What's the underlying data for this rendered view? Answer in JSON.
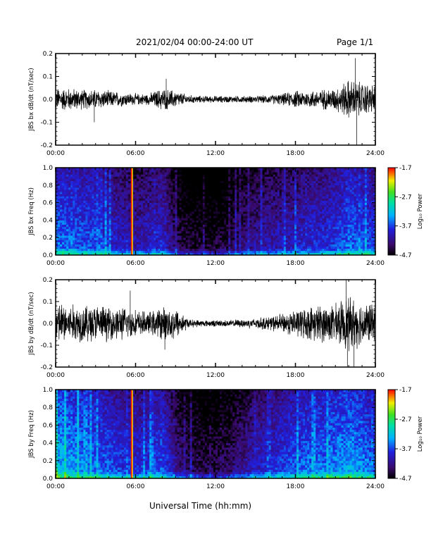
{
  "header": {
    "title": "2021/02/04  00:00-24:00 UT",
    "page": "Page 1/1"
  },
  "x_axis_label": "Universal Time (hh:mm)",
  "chart_data": [
    {
      "type": "line",
      "ylabel": "JBS bx dB/dt (nT/sec)",
      "ylim": [
        -0.2,
        0.2
      ],
      "yticks": [
        "0.2",
        "0.1",
        "0.0",
        "-0.1",
        "-0.2"
      ],
      "xticks": [
        "00:00",
        "06:00",
        "12:00",
        "18:00",
        "24:00"
      ],
      "xlim_hours": [
        0,
        24
      ],
      "envelope": {
        "hours": [
          0,
          1,
          2,
          3,
          4,
          5,
          6,
          7,
          8,
          9,
          10,
          11,
          12,
          13,
          14,
          15,
          16,
          17,
          18,
          19,
          20,
          21,
          22,
          23,
          24
        ],
        "amplitude": [
          0.04,
          0.04,
          0.035,
          0.035,
          0.03,
          0.025,
          0.02,
          0.02,
          0.04,
          0.03,
          0.015,
          0.012,
          0.012,
          0.012,
          0.012,
          0.012,
          0.015,
          0.02,
          0.03,
          0.03,
          0.035,
          0.04,
          0.07,
          0.06,
          0.05
        ],
        "peaks": [
          {
            "hour": 2.9,
            "value": -0.1
          },
          {
            "hour": 8.3,
            "value": 0.09
          },
          {
            "hour": 22.5,
            "value": 0.18
          },
          {
            "hour": 22.6,
            "value": -0.2
          }
        ]
      }
    },
    {
      "type": "heatmap",
      "ylabel": "JBS bx Freq (Hz)",
      "ylim": [
        0.0,
        1.0
      ],
      "yticks": [
        "1.0",
        "0.8",
        "0.6",
        "0.4",
        "0.2",
        "0.0"
      ],
      "xticks": [
        "00:00",
        "06:00",
        "12:00",
        "18:00",
        "24:00"
      ],
      "colorbar": {
        "label": "Log₁₀ Power",
        "ticks": [
          "-1.7",
          "-2.7",
          "-3.7",
          "-4.7"
        ],
        "range": [
          -4.7,
          -1.7
        ]
      },
      "activity_hours": [
        0,
        1,
        2,
        3,
        4,
        5,
        6,
        7,
        8,
        9,
        10,
        11,
        12,
        13,
        14,
        15,
        16,
        17,
        18,
        19,
        20,
        21,
        22,
        23,
        24
      ],
      "activity_level": [
        -3.5,
        -3.5,
        -3.6,
        -3.6,
        -3.8,
        -3.9,
        -4.0,
        -3.9,
        -3.8,
        -4.3,
        -4.5,
        -4.5,
        -4.5,
        -4.4,
        -4.2,
        -4.1,
        -4.0,
        -4.0,
        -3.9,
        -3.8,
        -3.8,
        -3.7,
        -3.5,
        -3.6,
        -3.7
      ],
      "spike_hour": 5.7
    },
    {
      "type": "line",
      "ylabel": "JBS by dB/dt (nT/sec)",
      "ylim": [
        -0.2,
        0.2
      ],
      "yticks": [
        "0.2",
        "0.1",
        "0.0",
        "-0.1",
        "-0.2"
      ],
      "xticks": [
        "00:00",
        "06:00",
        "12:00",
        "18:00",
        "24:00"
      ],
      "xlim_hours": [
        0,
        24
      ],
      "envelope": {
        "hours": [
          0,
          1,
          2,
          3,
          4,
          5,
          6,
          7,
          8,
          9,
          10,
          11,
          12,
          13,
          14,
          15,
          16,
          17,
          18,
          19,
          20,
          21,
          22,
          23,
          24
        ],
        "amplitude": [
          0.08,
          0.07,
          0.07,
          0.07,
          0.06,
          0.06,
          0.05,
          0.04,
          0.06,
          0.06,
          0.015,
          0.012,
          0.012,
          0.012,
          0.015,
          0.02,
          0.025,
          0.035,
          0.05,
          0.06,
          0.07,
          0.07,
          0.1,
          0.08,
          0.07
        ],
        "peaks": [
          {
            "hour": 5.6,
            "value": 0.15
          },
          {
            "hour": 8.2,
            "value": -0.12
          },
          {
            "hour": 21.8,
            "value": 0.2
          },
          {
            "hour": 21.9,
            "value": -0.2
          },
          {
            "hour": 22.4,
            "value": -0.2
          }
        ]
      }
    },
    {
      "type": "heatmap",
      "ylabel": "JBS by Freq (Hz)",
      "ylim": [
        0.0,
        1.0
      ],
      "yticks": [
        "1.0",
        "0.8",
        "0.6",
        "0.4",
        "0.2",
        "0.0"
      ],
      "xticks": [
        "00:00",
        "06:00",
        "12:00",
        "18:00",
        "24:00"
      ],
      "colorbar": {
        "label": "Log₁₀ Power",
        "ticks": [
          "-1.7",
          "-2.7",
          "-3.7",
          "-4.7"
        ],
        "range": [
          -4.7,
          -1.7
        ]
      },
      "activity_hours": [
        0,
        1,
        2,
        3,
        4,
        5,
        6,
        7,
        8,
        9,
        10,
        11,
        12,
        13,
        14,
        15,
        16,
        17,
        18,
        19,
        20,
        21,
        22,
        23,
        24
      ],
      "activity_level": [
        -3.2,
        -3.3,
        -3.4,
        -3.5,
        -3.6,
        -3.7,
        -3.8,
        -3.7,
        -3.6,
        -4.1,
        -4.3,
        -4.4,
        -4.4,
        -4.3,
        -4.1,
        -3.9,
        -3.8,
        -3.7,
        -3.6,
        -3.5,
        -3.5,
        -3.4,
        -3.3,
        -3.4,
        -3.6
      ],
      "spike_hour": 5.7
    }
  ]
}
